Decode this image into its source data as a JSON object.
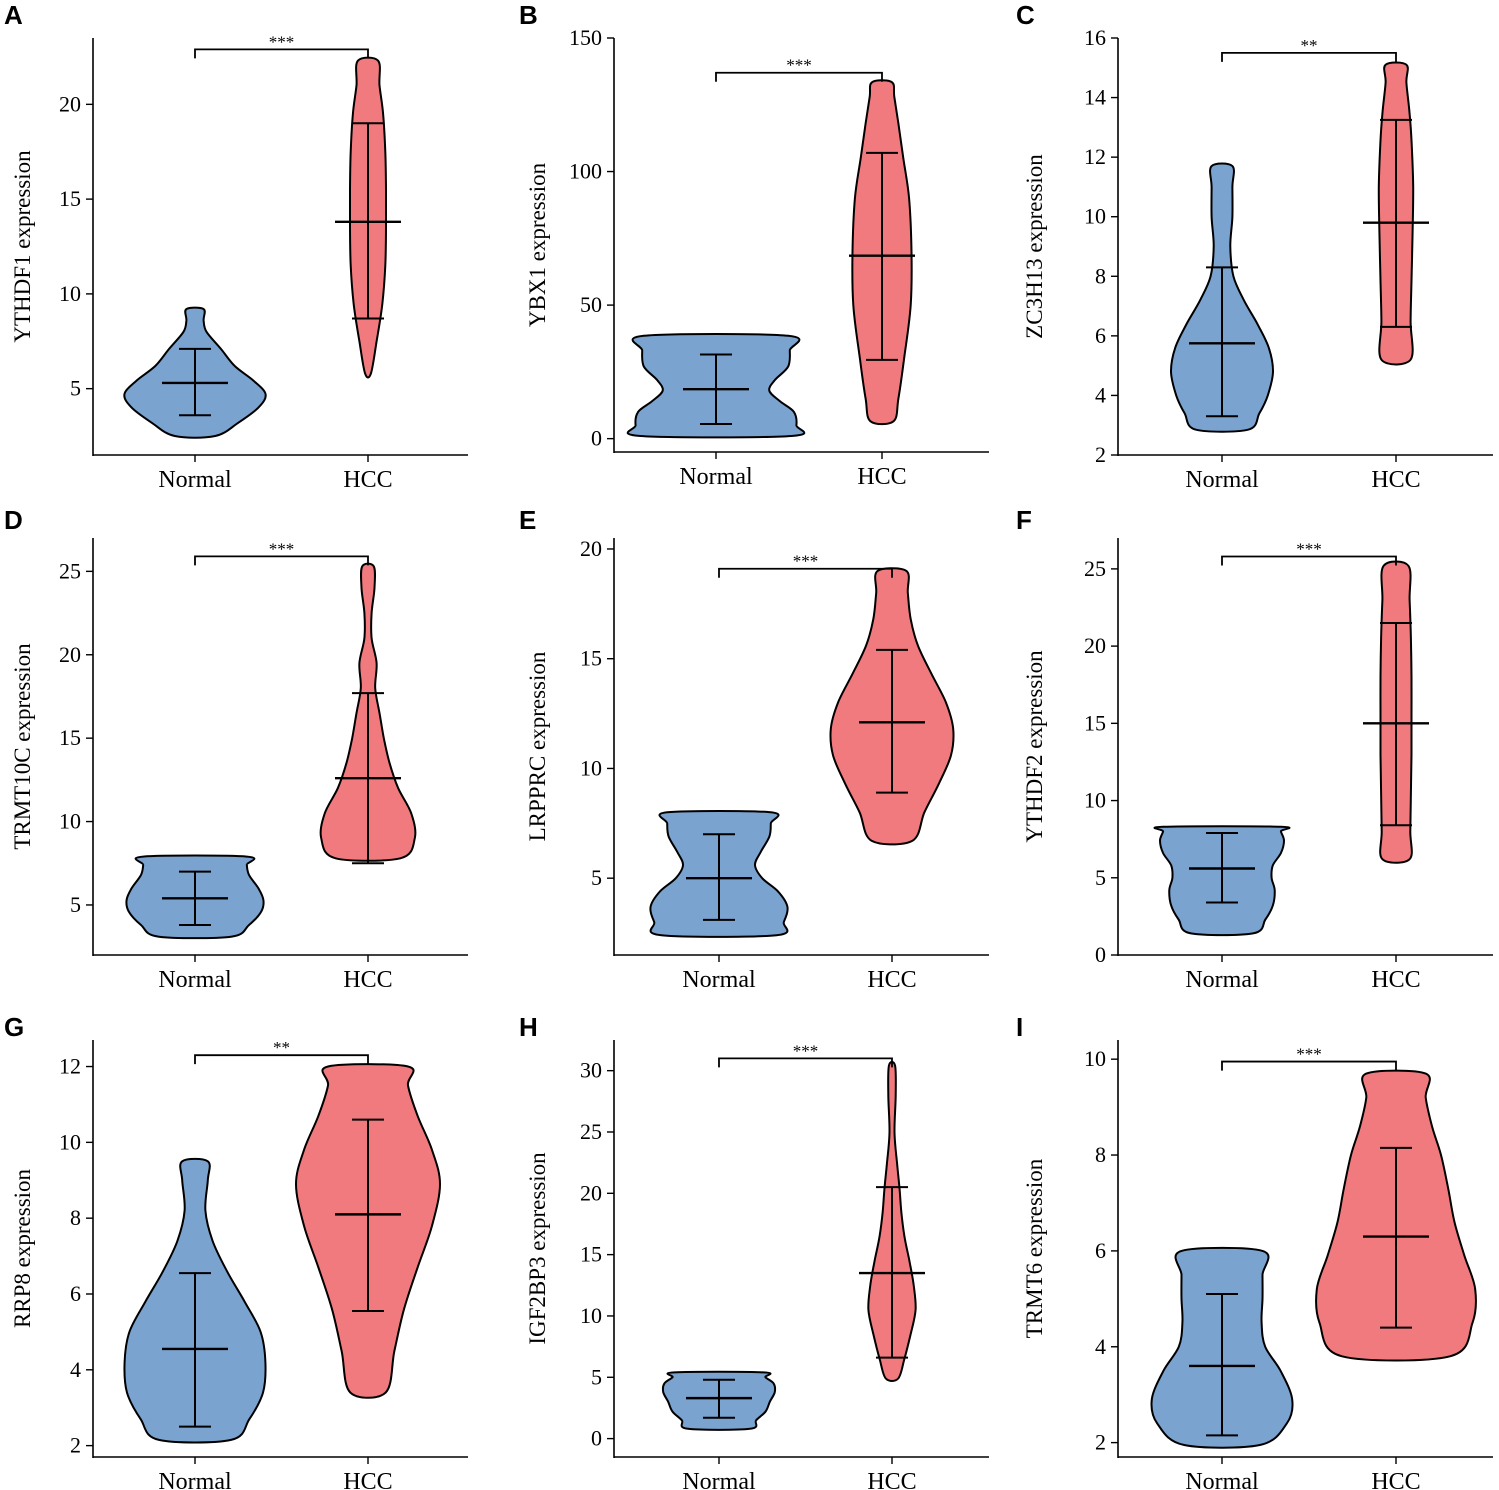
{
  "colors": {
    "normal_fill": "#7BA3CF",
    "hcc_fill": "#F07A7E",
    "stroke": "#000000"
  },
  "chart_data": [
    {
      "panel": "A",
      "type": "violin",
      "ylabel": "YTHDF1 expression",
      "categories": [
        "Normal",
        "HCC"
      ],
      "ylim": [
        1.5,
        23.5
      ],
      "yticks": [
        5,
        10,
        15,
        20
      ],
      "significance": "***",
      "bracket_y": 22.9,
      "groups": [
        {
          "name": "Normal",
          "min": 2.5,
          "max": 9.2,
          "whisker_low": 3.6,
          "whisker_high": 7.1,
          "median": 5.3,
          "shape": [
            [
              2.5,
              0.28
            ],
            [
              3.2,
              0.6
            ],
            [
              4.0,
              0.88
            ],
            [
              4.7,
              0.98
            ],
            [
              5.4,
              0.82
            ],
            [
              6.2,
              0.55
            ],
            [
              7.1,
              0.36
            ],
            [
              8.0,
              0.16
            ],
            [
              8.6,
              0.12
            ],
            [
              9.2,
              0.12
            ]
          ]
        },
        {
          "name": "HCC",
          "min": 5.8,
          "max": 22.3,
          "whisker_low": 8.7,
          "whisker_high": 19.0,
          "median": 13.8,
          "shape": [
            [
              5.8,
              0.04
            ],
            [
              7.5,
              0.12
            ],
            [
              9.5,
              0.2
            ],
            [
              11.5,
              0.24
            ],
            [
              13.5,
              0.25
            ],
            [
              15.5,
              0.25
            ],
            [
              17.5,
              0.24
            ],
            [
              19.5,
              0.21
            ],
            [
              21.0,
              0.16
            ],
            [
              22.3,
              0.14
            ]
          ]
        }
      ]
    },
    {
      "panel": "B",
      "type": "violin",
      "ylabel": "YBX1 expression",
      "categories": [
        "Normal",
        "HCC"
      ],
      "ylim": [
        -5,
        150
      ],
      "yticks": [
        0,
        50,
        100,
        150
      ],
      "significance": "***",
      "bracket_y": 137,
      "groups": [
        {
          "name": "Normal",
          "min": 1.0,
          "max": 38.5,
          "whisker_low": 5.5,
          "whisker_high": 31.5,
          "median": 18.5,
          "shape": [
            [
              1,
              0.92
            ],
            [
              5,
              0.98
            ],
            [
              10,
              0.95
            ],
            [
              14,
              0.78
            ],
            [
              18,
              0.65
            ],
            [
              22,
              0.72
            ],
            [
              27,
              0.88
            ],
            [
              33,
              0.9
            ],
            [
              38.5,
              0.88
            ]
          ]
        },
        {
          "name": "HCC",
          "min": 6.5,
          "max": 133.5,
          "whisker_low": 29.5,
          "whisker_high": 107,
          "median": 68.5,
          "shape": [
            [
              6.5,
              0.14
            ],
            [
              15,
              0.2
            ],
            [
              30,
              0.27
            ],
            [
              50,
              0.35
            ],
            [
              70,
              0.36
            ],
            [
              90,
              0.33
            ],
            [
              105,
              0.26
            ],
            [
              118,
              0.2
            ],
            [
              128,
              0.15
            ],
            [
              133.5,
              0.12
            ]
          ]
        }
      ]
    },
    {
      "panel": "C",
      "type": "violin",
      "ylabel": "ZC3H13 expression",
      "categories": [
        "Normal",
        "HCC"
      ],
      "ylim": [
        2,
        16
      ],
      "yticks": [
        2,
        4,
        6,
        8,
        10,
        12,
        14,
        16
      ],
      "significance": "**",
      "bracket_y": 15.5,
      "groups": [
        {
          "name": "Normal",
          "min": 2.85,
          "max": 11.7,
          "whisker_low": 3.3,
          "whisker_high": 8.3,
          "median": 5.75,
          "shape": [
            [
              2.85,
              0.5
            ],
            [
              3.4,
              0.72
            ],
            [
              4.0,
              0.88
            ],
            [
              4.8,
              0.98
            ],
            [
              5.6,
              0.9
            ],
            [
              6.4,
              0.68
            ],
            [
              7.2,
              0.42
            ],
            [
              8.0,
              0.22
            ],
            [
              9.0,
              0.16
            ],
            [
              10.0,
              0.2
            ],
            [
              11.0,
              0.2
            ],
            [
              11.7,
              0.2
            ]
          ]
        },
        {
          "name": "HCC",
          "min": 5.2,
          "max": 15.1,
          "whisker_low": 6.3,
          "whisker_high": 13.25,
          "median": 9.8,
          "shape": [
            [
              5.2,
              0.28
            ],
            [
              6.5,
              0.28
            ],
            [
              8.0,
              0.3
            ],
            [
              9.5,
              0.32
            ],
            [
              11.0,
              0.33
            ],
            [
              12.5,
              0.3
            ],
            [
              13.5,
              0.26
            ],
            [
              14.5,
              0.2
            ],
            [
              15.1,
              0.2
            ]
          ]
        }
      ]
    },
    {
      "panel": "D",
      "type": "violin",
      "ylabel": "TRMT10C expression",
      "categories": [
        "Normal",
        "HCC"
      ],
      "ylim": [
        2,
        27
      ],
      "yticks": [
        5,
        10,
        15,
        20,
        25
      ],
      "significance": "***",
      "bracket_y": 25.9,
      "groups": [
        {
          "name": "Normal",
          "min": 3.1,
          "max": 7.9,
          "whisker_low": 3.8,
          "whisker_high": 7.0,
          "median": 5.4,
          "shape": [
            [
              3.1,
              0.5
            ],
            [
              3.8,
              0.75
            ],
            [
              4.6,
              0.92
            ],
            [
              5.3,
              0.95
            ],
            [
              6.0,
              0.88
            ],
            [
              6.8,
              0.75
            ],
            [
              7.4,
              0.72
            ],
            [
              7.9,
              0.72
            ]
          ]
        },
        {
          "name": "HCC",
          "min": 7.8,
          "max": 25.3,
          "whisker_low": 7.5,
          "whisker_high": 17.7,
          "median": 12.6,
          "shape": [
            [
              7.8,
              0.45
            ],
            [
              9.0,
              0.65
            ],
            [
              10.5,
              0.6
            ],
            [
              12.0,
              0.42
            ],
            [
              13.5,
              0.3
            ],
            [
              15.0,
              0.22
            ],
            [
              16.5,
              0.16
            ],
            [
              18.0,
              0.1
            ],
            [
              19.5,
              0.12
            ],
            [
              21.0,
              0.05
            ],
            [
              22.5,
              0.05
            ],
            [
              24.0,
              0.09
            ],
            [
              25.3,
              0.08
            ]
          ]
        }
      ]
    },
    {
      "panel": "E",
      "type": "violin",
      "ylabel": "LRPPRC expression",
      "categories": [
        "Normal",
        "HCC"
      ],
      "ylim": [
        1.5,
        20.5
      ],
      "yticks": [
        5,
        10,
        15,
        20
      ],
      "significance": "***",
      "bracket_y": 19.1,
      "groups": [
        {
          "name": "Normal",
          "min": 2.4,
          "max": 8.0,
          "whisker_low": 3.1,
          "whisker_high": 7.0,
          "median": 5.0,
          "shape": [
            [
              2.4,
              0.8
            ],
            [
              3.0,
              0.9
            ],
            [
              3.7,
              0.95
            ],
            [
              4.4,
              0.82
            ],
            [
              5.0,
              0.6
            ],
            [
              5.6,
              0.5
            ],
            [
              6.2,
              0.58
            ],
            [
              6.9,
              0.7
            ],
            [
              7.5,
              0.72
            ],
            [
              8.0,
              0.72
            ]
          ]
        },
        {
          "name": "HCC",
          "min": 6.7,
          "max": 19.0,
          "whisker_low": 8.9,
          "whisker_high": 15.4,
          "median": 12.1,
          "shape": [
            [
              6.7,
              0.28
            ],
            [
              8.0,
              0.45
            ],
            [
              9.3,
              0.65
            ],
            [
              10.6,
              0.82
            ],
            [
              11.8,
              0.85
            ],
            [
              13.0,
              0.75
            ],
            [
              14.3,
              0.55
            ],
            [
              15.6,
              0.36
            ],
            [
              16.8,
              0.26
            ],
            [
              18.0,
              0.22
            ],
            [
              19.0,
              0.2
            ]
          ]
        }
      ]
    },
    {
      "panel": "F",
      "type": "violin",
      "ylabel": "YTHDF2 expression",
      "categories": [
        "Normal",
        "HCC"
      ],
      "ylim": [
        0,
        27
      ],
      "yticks": [
        0,
        5,
        10,
        15,
        20,
        25
      ],
      "significance": "***",
      "bracket_y": 25.8,
      "groups": [
        {
          "name": "Normal",
          "min": 1.4,
          "max": 8.3,
          "whisker_low": 3.4,
          "whisker_high": 7.9,
          "median": 5.6,
          "shape": [
            [
              1.4,
              0.5
            ],
            [
              2.3,
              0.7
            ],
            [
              3.2,
              0.82
            ],
            [
              4.2,
              0.85
            ],
            [
              5.0,
              0.8
            ],
            [
              5.8,
              0.82
            ],
            [
              6.6,
              0.95
            ],
            [
              7.4,
              1.0
            ],
            [
              8.0,
              0.95
            ],
            [
              8.3,
              0.95
            ]
          ]
        },
        {
          "name": "HCC",
          "min": 6.2,
          "max": 25.2,
          "whisker_low": 8.4,
          "whisker_high": 21.5,
          "median": 15.0,
          "shape": [
            [
              6.2,
              0.22
            ],
            [
              8.0,
              0.23
            ],
            [
              10.5,
              0.24
            ],
            [
              13.0,
              0.25
            ],
            [
              15.5,
              0.25
            ],
            [
              18.0,
              0.25
            ],
            [
              20.5,
              0.24
            ],
            [
              23.0,
              0.22
            ],
            [
              25.2,
              0.2
            ]
          ]
        }
      ]
    },
    {
      "panel": "G",
      "type": "violin",
      "ylabel": "RRP8 expression",
      "categories": [
        "Normal",
        "HCC"
      ],
      "ylim": [
        1.7,
        12.7
      ],
      "yticks": [
        2,
        4,
        6,
        8,
        10,
        12
      ],
      "significance": "**",
      "bracket_y": 12.3,
      "groups": [
        {
          "name": "Normal",
          "min": 2.15,
          "max": 9.5,
          "whisker_low": 2.5,
          "whisker_high": 6.55,
          "median": 4.55,
          "shape": [
            [
              2.15,
              0.45
            ],
            [
              2.7,
              0.68
            ],
            [
              3.4,
              0.85
            ],
            [
              4.2,
              0.88
            ],
            [
              5.0,
              0.82
            ],
            [
              5.8,
              0.62
            ],
            [
              6.6,
              0.4
            ],
            [
              7.4,
              0.22
            ],
            [
              8.2,
              0.13
            ],
            [
              9.0,
              0.16
            ],
            [
              9.5,
              0.16
            ]
          ]
        },
        {
          "name": "HCC",
          "min": 3.4,
          "max": 12.0,
          "whisker_low": 5.55,
          "whisker_high": 10.6,
          "median": 8.1,
          "shape": [
            [
              3.4,
              0.22
            ],
            [
              4.5,
              0.33
            ],
            [
              5.6,
              0.45
            ],
            [
              6.7,
              0.62
            ],
            [
              7.8,
              0.8
            ],
            [
              8.9,
              0.9
            ],
            [
              9.8,
              0.8
            ],
            [
              10.7,
              0.62
            ],
            [
              11.5,
              0.5
            ],
            [
              12.0,
              0.5
            ]
          ]
        }
      ]
    },
    {
      "panel": "H",
      "type": "violin",
      "ylabel": "IGF2BP3 expression",
      "categories": [
        "Normal",
        "HCC"
      ],
      "ylim": [
        -1.5,
        32.5
      ],
      "yticks": [
        0,
        5,
        10,
        15,
        20,
        25,
        30
      ],
      "significance": "***",
      "bracket_y": 31.0,
      "groups": [
        {
          "name": "Normal",
          "min": 0.8,
          "max": 5.4,
          "whisker_low": 1.7,
          "whisker_high": 4.8,
          "median": 3.3,
          "shape": [
            [
              0.8,
              0.5
            ],
            [
              1.5,
              0.6
            ],
            [
              2.2,
              0.75
            ],
            [
              3.0,
              0.82
            ],
            [
              3.8,
              0.9
            ],
            [
              4.5,
              0.88
            ],
            [
              5.0,
              0.75
            ],
            [
              5.4,
              0.72
            ]
          ]
        },
        {
          "name": "HCC",
          "min": 4.9,
          "max": 30.4,
          "whisker_low": 6.6,
          "whisker_high": 20.5,
          "median": 13.5,
          "shape": [
            [
              4.9,
              0.1
            ],
            [
              6.5,
              0.2
            ],
            [
              8.5,
              0.3
            ],
            [
              10.5,
              0.38
            ],
            [
              12.5,
              0.35
            ],
            [
              14.5,
              0.28
            ],
            [
              16.5,
              0.2
            ],
            [
              18.5,
              0.15
            ],
            [
              20.5,
              0.12
            ],
            [
              22.5,
              0.08
            ],
            [
              25.0,
              0.04
            ],
            [
              28.0,
              0.06
            ],
            [
              30.4,
              0.05
            ]
          ]
        }
      ]
    },
    {
      "panel": "I",
      "type": "violin",
      "ylabel": "TRMT6 expression",
      "categories": [
        "Normal",
        "HCC"
      ],
      "ylim": [
        1.7,
        10.4
      ],
      "yticks": [
        2,
        4,
        6,
        8,
        10
      ],
      "significance": "***",
      "bracket_y": 9.95,
      "groups": [
        {
          "name": "Normal",
          "min": 1.95,
          "max": 6.0,
          "whisker_low": 2.15,
          "whisker_high": 5.1,
          "median": 3.6,
          "shape": [
            [
              1.95,
              0.42
            ],
            [
              2.4,
              0.72
            ],
            [
              2.9,
              0.78
            ],
            [
              3.5,
              0.65
            ],
            [
              4.0,
              0.48
            ],
            [
              4.5,
              0.44
            ],
            [
              5.0,
              0.45
            ],
            [
              5.5,
              0.45
            ],
            [
              6.0,
              0.45
            ]
          ]
        },
        {
          "name": "HCC",
          "min": 3.8,
          "max": 9.7,
          "whisker_low": 4.4,
          "whisker_high": 8.15,
          "median": 6.3,
          "shape": [
            [
              3.8,
              0.6
            ],
            [
              4.5,
              0.85
            ],
            [
              5.2,
              0.88
            ],
            [
              5.9,
              0.76
            ],
            [
              6.6,
              0.65
            ],
            [
              7.3,
              0.58
            ],
            [
              8.0,
              0.5
            ],
            [
              8.6,
              0.4
            ],
            [
              9.2,
              0.33
            ],
            [
              9.7,
              0.33
            ]
          ]
        }
      ]
    }
  ]
}
